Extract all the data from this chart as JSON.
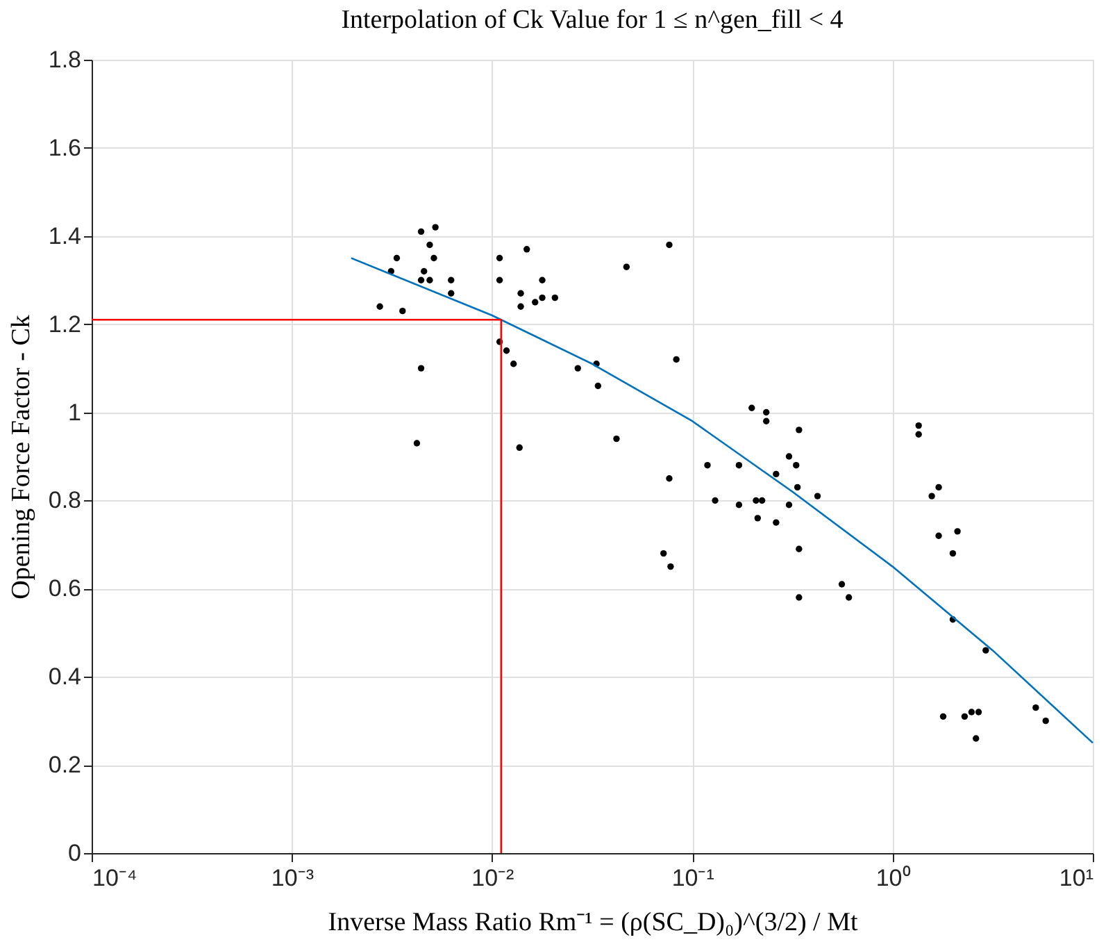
{
  "chart_data": {
    "type": "scatter",
    "title": "Interpolation of Ck Value for 1 ≤ n^gen_fill < 4",
    "xlabel": "Inverse Mass Ratio Rm⁻¹ = (ρ(SC_D)₀)^(3/2) / Mt",
    "ylabel": "Opening Force Factor - Ck",
    "log": "x",
    "grid": true,
    "legend": false,
    "marker": "circle",
    "xlim": [
      0.0001,
      10
    ],
    "xticks": [
      {
        "value": 0.0001,
        "label": "10⁻⁴"
      },
      {
        "value": 0.001,
        "label": "10⁻³"
      },
      {
        "value": 0.01,
        "label": "10⁻²"
      },
      {
        "value": 0.1,
        "label": "10⁻¹"
      },
      {
        "value": 1,
        "label": "10⁰"
      },
      {
        "value": 10,
        "label": "10¹"
      }
    ],
    "ylim": [
      0,
      1.8
    ],
    "yticks": [
      0,
      0.2,
      0.4,
      0.6,
      0.8,
      1,
      1.2,
      1.4,
      1.6,
      1.8
    ],
    "series": [
      {
        "type": "scatter",
        "color": "#000000",
        "x": [
          0.00275,
          0.00313,
          0.00334,
          0.00357,
          0.00421,
          0.00442,
          0.00442,
          0.00442,
          0.00457,
          0.00488,
          0.00512,
          0.00488,
          0.00521,
          0.00624,
          0.00624,
          0.0109,
          0.0109,
          0.0109,
          0.0118,
          0.0128,
          0.0137,
          0.0139,
          0.0139,
          0.0149,
          0.0164,
          0.0178,
          0.0178,
          0.0206,
          0.0268,
          0.0332,
          0.0338,
          0.0418,
          0.0469,
          0.0767,
          0.0832,
          0.0767,
          0.0718,
          0.0779,
          0.119,
          0.13,
          0.171,
          0.171,
          0.198,
          0.234,
          0.234,
          0.341,
          0.304,
          0.33,
          0.262,
          0.335,
          0.208,
          0.223,
          0.212,
          0.262,
          0.304,
          0.422,
          0.341,
          0.341,
          0.558,
          0.605,
          1.35,
          1.35,
          1.57,
          1.7,
          1.7,
          2.11,
          2.0,
          2.0,
          2.92,
          1.79,
          2.29,
          2.48,
          2.69,
          2.61,
          5.19,
          5.82
        ],
        "values": [
          1.24,
          1.32,
          1.35,
          1.23,
          0.93,
          1.1,
          1.41,
          1.3,
          1.32,
          1.38,
          1.35,
          1.3,
          1.42,
          1.3,
          1.27,
          1.35,
          1.3,
          1.16,
          1.14,
          1.11,
          0.92,
          1.27,
          1.24,
          1.37,
          1.25,
          1.3,
          1.26,
          1.26,
          1.1,
          1.11,
          1.06,
          0.94,
          1.33,
          1.38,
          1.12,
          0.85,
          0.68,
          0.65,
          0.88,
          0.8,
          0.88,
          0.79,
          1.01,
          1.0,
          0.98,
          0.96,
          0.9,
          0.88,
          0.86,
          0.83,
          0.8,
          0.8,
          0.76,
          0.75,
          0.79,
          0.81,
          0.69,
          0.58,
          0.61,
          0.58,
          0.97,
          0.95,
          0.81,
          0.83,
          0.72,
          0.73,
          0.68,
          0.53,
          0.46,
          0.31,
          0.31,
          0.32,
          0.32,
          0.26,
          0.33,
          0.3
        ]
      },
      {
        "type": "line",
        "color": "#0072bd",
        "marker": "none",
        "line_style": "solid",
        "x": [
          0.00198,
          0.01,
          0.0316,
          0.1,
          0.316,
          1,
          3.16,
          10
        ],
        "values": [
          1.35,
          1.22,
          1.11,
          0.98,
          0.82,
          0.65,
          0.46,
          0.25
        ]
      },
      {
        "type": "line",
        "color": "#ff0000",
        "marker": "none",
        "line_style": "solid",
        "x": [
          0.0001,
          0.0111,
          0.0111
        ],
        "values": [
          1.21,
          1.21,
          0
        ]
      }
    ]
  }
}
